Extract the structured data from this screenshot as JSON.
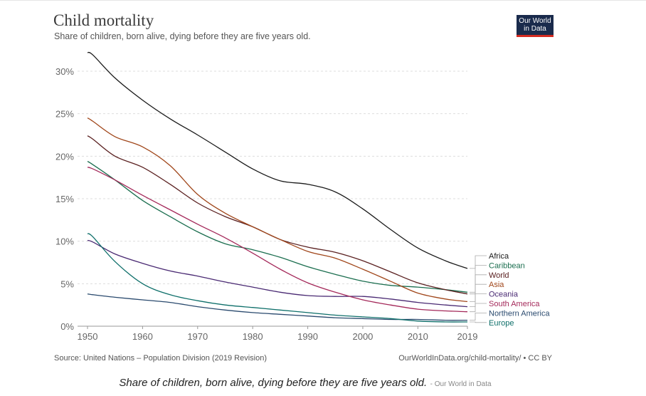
{
  "header": {
    "title": "Child mortality",
    "subtitle": "Share of children, born alive, dying before they are five years old."
  },
  "logo": {
    "line1": "Our World",
    "line2": "in Data"
  },
  "footer": {
    "source": "Source: United Nations – Population Division (2019 Revision)",
    "url": "OurWorldInData.org/child-mortality/ • CC BY"
  },
  "caption": {
    "text": "Share of children, born alive, dying before they are five years old.",
    "credit": "- Our World in Data"
  },
  "colors": {
    "grid": "#dddddd",
    "axis_text": "#666666",
    "connector": "#aaaaaa"
  },
  "chart_data": {
    "type": "line",
    "title": "Child mortality",
    "subtitle": "Share of children, born alive, dying before they are five years old.",
    "xlabel": "",
    "ylabel": "",
    "xlim": [
      1950,
      2019
    ],
    "ylim": [
      0,
      30
    ],
    "x_ticks": [
      1950,
      1960,
      1970,
      1980,
      1990,
      2000,
      2010,
      2019
    ],
    "x_tick_labels": [
      "1950",
      "1960",
      "1970",
      "1980",
      "1990",
      "2000",
      "2010",
      "2019"
    ],
    "y_ticks": [
      0,
      5,
      10,
      15,
      20,
      25,
      30
    ],
    "y_tick_labels": [
      "0%",
      "5%",
      "10%",
      "15%",
      "20%",
      "25%",
      "30%"
    ],
    "grid": true,
    "legend": "right, labels at line ends",
    "series": [
      {
        "name": "Africa",
        "color": "#1a1a1a",
        "x": [
          1950,
          1951,
          1955,
          1960,
          1965,
          1970,
          1975,
          1980,
          1985,
          1990,
          1995,
          2000,
          2005,
          2010,
          2015,
          2019
        ],
        "values": [
          32.2,
          31.9,
          29.2,
          26.6,
          24.4,
          22.5,
          20.5,
          18.5,
          17.1,
          16.7,
          15.8,
          13.8,
          11.4,
          9.2,
          7.7,
          6.8
        ]
      },
      {
        "name": "Caribbean",
        "color": "#1b6e4f",
        "x": [
          1950,
          1951,
          1955,
          1960,
          1965,
          1970,
          1975,
          1980,
          1985,
          1990,
          1995,
          2000,
          2005,
          2010,
          2015,
          2019
        ],
        "values": [
          19.4,
          19.0,
          17.2,
          14.8,
          12.9,
          11.1,
          9.7,
          9.0,
          8.1,
          7.0,
          6.1,
          5.3,
          4.8,
          4.6,
          4.3,
          4.0
        ]
      },
      {
        "name": "World",
        "color": "#5a2020",
        "x": [
          1950,
          1951,
          1955,
          1960,
          1965,
          1970,
          1975,
          1980,
          1985,
          1990,
          1995,
          2000,
          2005,
          2010,
          2015,
          2019
        ],
        "values": [
          22.4,
          22.0,
          20.0,
          18.7,
          16.7,
          14.5,
          12.9,
          11.7,
          10.2,
          9.3,
          8.7,
          7.7,
          6.4,
          5.1,
          4.3,
          3.8
        ]
      },
      {
        "name": "Asia",
        "color": "#a0461a",
        "x": [
          1950,
          1951,
          1955,
          1960,
          1965,
          1970,
          1975,
          1980,
          1985,
          1990,
          1995,
          2000,
          2005,
          2010,
          2015,
          2019
        ],
        "values": [
          24.5,
          24.1,
          22.3,
          21.1,
          18.9,
          15.5,
          13.3,
          11.7,
          10.2,
          8.8,
          8.0,
          6.7,
          5.3,
          3.9,
          3.2,
          2.9
        ]
      },
      {
        "name": "Oceania",
        "color": "#4a2a73",
        "x": [
          1950,
          1951,
          1955,
          1960,
          1965,
          1970,
          1975,
          1980,
          1985,
          1990,
          1995,
          2000,
          2005,
          2010,
          2015,
          2019
        ],
        "values": [
          10.1,
          9.9,
          8.5,
          7.4,
          6.5,
          5.9,
          5.2,
          4.6,
          4.0,
          3.6,
          3.5,
          3.5,
          3.2,
          2.8,
          2.5,
          2.3
        ]
      },
      {
        "name": "South America",
        "color": "#a4295a",
        "x": [
          1950,
          1951,
          1955,
          1960,
          1965,
          1970,
          1975,
          1980,
          1985,
          1990,
          1995,
          2000,
          2005,
          2010,
          2015,
          2019
        ],
        "values": [
          18.7,
          18.5,
          17.2,
          15.4,
          13.7,
          12.0,
          10.4,
          8.6,
          6.7,
          5.1,
          4.0,
          3.1,
          2.5,
          2.0,
          1.8,
          1.7
        ]
      },
      {
        "name": "Northern America",
        "color": "#2a4a6e",
        "x": [
          1950,
          1951,
          1955,
          1960,
          1965,
          1970,
          1975,
          1980,
          1985,
          1990,
          1995,
          2000,
          2005,
          2010,
          2015,
          2019
        ],
        "values": [
          3.8,
          3.7,
          3.4,
          3.1,
          2.8,
          2.3,
          1.9,
          1.6,
          1.4,
          1.2,
          1.0,
          0.9,
          0.8,
          0.8,
          0.7,
          0.7
        ]
      },
      {
        "name": "Europe",
        "color": "#0e6f6a",
        "x": [
          1950,
          1951,
          1955,
          1960,
          1965,
          1970,
          1975,
          1980,
          1985,
          1990,
          1995,
          2000,
          2005,
          2010,
          2015,
          2019
        ],
        "values": [
          10.9,
          10.5,
          7.6,
          5.0,
          3.7,
          3.0,
          2.5,
          2.2,
          1.9,
          1.6,
          1.3,
          1.1,
          0.9,
          0.6,
          0.5,
          0.5
        ]
      }
    ]
  }
}
